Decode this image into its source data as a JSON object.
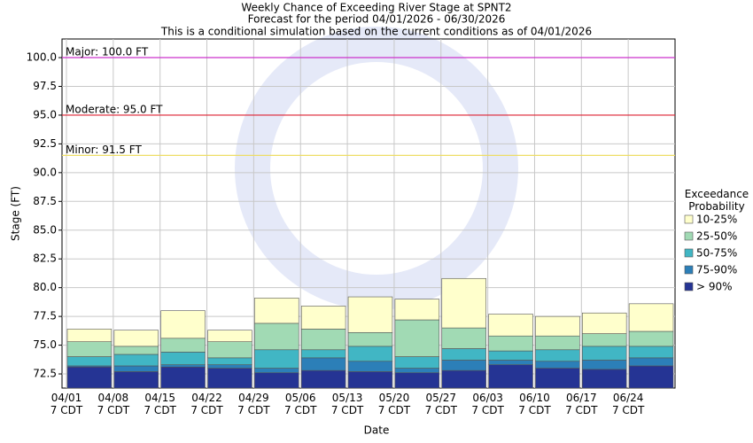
{
  "chart_data": {
    "type": "range-bar",
    "title": [
      "Weekly Chance of Exceeding River Stage at SPNT2",
      "Forecast for the period 04/01/2026 - 06/30/2026",
      "This is a conditional simulation based on the current conditions as of 04/01/2026"
    ],
    "x_label": "Date",
    "y_label": "Stage (FT)",
    "legend_title": "Exceedance\nProbability",
    "categories": [
      "04/01\n7 CDT",
      "04/08\n7 CDT",
      "04/15\n7 CDT",
      "04/22\n7 CDT",
      "04/29\n7 CDT",
      "05/06\n7 CDT",
      "05/13\n7 CDT",
      "05/20\n7 CDT",
      "05/27\n7 CDT",
      "06/03\n7 CDT",
      "06/10\n7 CDT",
      "06/17\n7 CDT",
      "06/24\n7 CDT"
    ],
    "series": [
      {
        "name": "> 90%",
        "color": "#253494",
        "values": [
          73.1,
          72.7,
          73.1,
          73.0,
          72.6,
          72.8,
          72.7,
          72.6,
          72.8,
          73.3,
          73.0,
          72.9,
          73.2
        ]
      },
      {
        "name": "75-90%",
        "color": "#2c7fb8",
        "values": [
          73.2,
          73.2,
          73.3,
          73.3,
          73.0,
          73.9,
          73.6,
          73.0,
          73.7,
          73.7,
          73.6,
          73.7,
          73.9
        ]
      },
      {
        "name": "50-75%",
        "color": "#41b6c4",
        "values": [
          74.0,
          74.2,
          74.4,
          73.9,
          74.6,
          74.6,
          74.9,
          74.0,
          74.7,
          74.5,
          74.6,
          74.9,
          74.9
        ]
      },
      {
        "name": "25-50%",
        "color": "#a1dab4",
        "values": [
          75.3,
          74.9,
          75.6,
          75.3,
          76.9,
          76.4,
          76.1,
          77.2,
          76.5,
          75.8,
          75.8,
          76.0,
          76.2
        ]
      },
      {
        "name": "10-25%",
        "color": "#ffffcc",
        "values": [
          76.4,
          76.3,
          78.0,
          76.3,
          79.1,
          78.4,
          79.2,
          79.0,
          80.8,
          77.7,
          77.5,
          77.8,
          78.6
        ]
      }
    ],
    "thresholds": [
      {
        "label": "Major: 100.0 FT",
        "value": 100,
        "color": "#cc33cc"
      },
      {
        "label": "Moderate: 95.0 FT",
        "value": 95,
        "color": "#dd2233"
      },
      {
        "label": "Minor: 91.5 FT",
        "value": 91.5,
        "color": "#eedd66"
      }
    ],
    "ylim": [
      71.27,
      101.62
    ],
    "yticks": [
      72.5,
      {
        "value": 75,
        "label": "75.0"
      },
      77.5,
      {
        "value": 80,
        "label": "80.0"
      },
      82.5,
      {
        "value": 85,
        "label": "85.0"
      },
      87.5,
      {
        "value": 90,
        "label": "90.0"
      },
      92.5,
      {
        "value": 95,
        "label": "95.0"
      },
      97.5,
      {
        "value": 100,
        "label": "100.0"
      }
    ],
    "grid": true
  }
}
